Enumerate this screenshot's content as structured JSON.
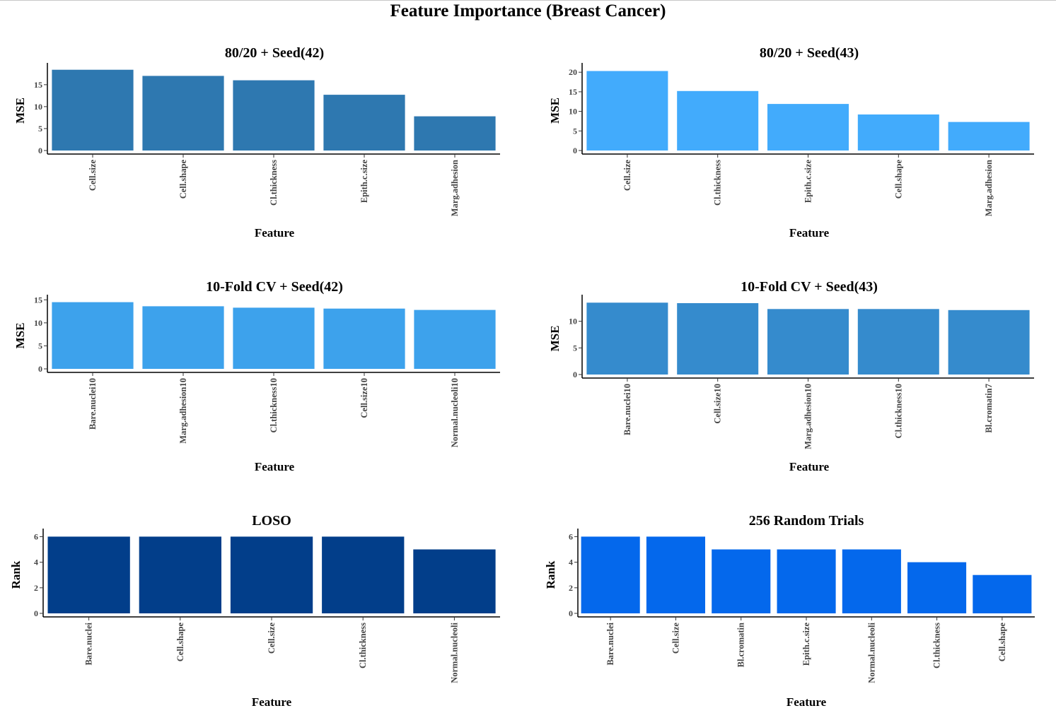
{
  "title": "Feature Importance (Breast Cancer)",
  "chart_data": [
    {
      "type": "bar",
      "title": "80/20 + Seed(42)",
      "xlabel": "Feature",
      "ylabel": "MSE",
      "categories": [
        "Cell.size",
        "Cell.shape",
        "Cl.thickness",
        "Epith.c.size",
        "Marg.adhesion"
      ],
      "values": [
        18.4,
        17.0,
        16.0,
        12.7,
        7.8
      ],
      "ylim": [
        0,
        19
      ],
      "yticks": [
        0,
        5,
        10,
        15
      ],
      "color": "#2e78b0",
      "grid": false
    },
    {
      "type": "bar",
      "title": "80/20 + Seed(43)",
      "xlabel": "Feature",
      "ylabel": "MSE",
      "categories": [
        "Cell.size",
        "Cl.thickness",
        "Epith.c.size",
        "Cell.shape",
        "Marg.adhesion"
      ],
      "values": [
        20.3,
        15.2,
        11.9,
        9.2,
        7.3
      ],
      "ylim": [
        0,
        21.3
      ],
      "yticks": [
        0,
        5,
        10,
        15,
        20
      ],
      "color": "#42abfc",
      "grid": false
    },
    {
      "type": "bar",
      "title": "10-Fold CV + Seed(42)",
      "xlabel": "Feature",
      "ylabel": "MSE",
      "categories": [
        "Bare.nuclei10",
        "Marg.adhesion10",
        "Cl.thickness10",
        "Cell.size10",
        "Normal.nucleoli10"
      ],
      "values": [
        14.5,
        13.6,
        13.3,
        13.1,
        12.8
      ],
      "ylim": [
        0,
        15.2
      ],
      "yticks": [
        0,
        5,
        10,
        15
      ],
      "color": "#3da2ec",
      "grid": false
    },
    {
      "type": "bar",
      "title": "10-Fold CV + Seed(43)",
      "xlabel": "Feature",
      "ylabel": "MSE",
      "categories": [
        "Bare.nuclei10",
        "Cell.size10",
        "Marg.adhesion10",
        "Cl.thickness10",
        "Bl.cromatin7"
      ],
      "values": [
        13.5,
        13.4,
        12.3,
        12.3,
        12.1
      ],
      "ylim": [
        0,
        14.2
      ],
      "yticks": [
        0,
        5,
        10
      ],
      "color": "#358bcd",
      "grid": false
    },
    {
      "type": "bar",
      "title": "LOSO",
      "xlabel": "Feature",
      "ylabel": "Rank",
      "categories": [
        "Bare.nuclei",
        "Cell.shape",
        "Cell.size",
        "Cl.thickness",
        "Normal.nucleoli"
      ],
      "values": [
        6,
        6,
        6,
        6,
        5
      ],
      "ylim": [
        0,
        6.3
      ],
      "yticks": [
        0,
        2,
        4,
        6
      ],
      "color": "#023e8a",
      "grid": false
    },
    {
      "type": "bar",
      "title": "256 Random Trials",
      "xlabel": "Feature",
      "ylabel": "Rank",
      "categories": [
        "Bare.nuclei",
        "Cell.size",
        "Bl.cromatin",
        "Epith.c.size",
        "Normal.nucleoli",
        "Cl.thickness",
        "Cell.shape"
      ],
      "values": [
        6,
        6,
        5,
        5,
        5,
        4,
        3
      ],
      "ylim": [
        0,
        6.3
      ],
      "yticks": [
        0,
        2,
        4,
        6
      ],
      "color": "#0468ec",
      "grid": false
    }
  ]
}
